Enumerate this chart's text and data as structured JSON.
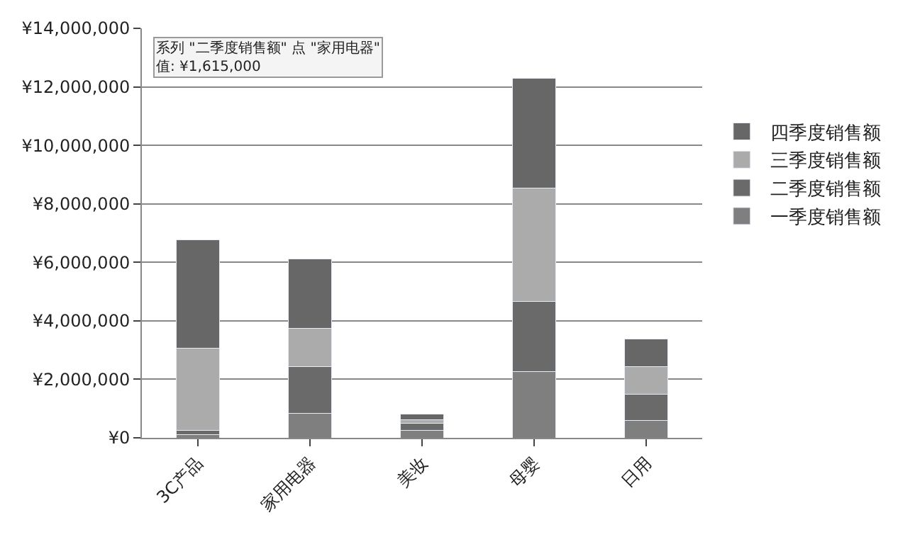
{
  "chart_data": {
    "type": "bar",
    "stacked": true,
    "categories": [
      "3C产品",
      "家用电器",
      "美妆",
      "母婴",
      "日用"
    ],
    "series": [
      {
        "name": "一季度销售额",
        "color": "#7f7f7f",
        "values": [
          100000,
          830000,
          250000,
          2270000,
          600000
        ]
      },
      {
        "name": "二季度销售额",
        "color": "#6a6a6a",
        "values": [
          160000,
          1615000,
          250000,
          2400000,
          890000
        ]
      },
      {
        "name": "三季度销售额",
        "color": "#ababab",
        "values": [
          2800000,
          1290000,
          120000,
          3860000,
          950000
        ]
      },
      {
        "name": "四季度销售额",
        "color": "#676767",
        "values": [
          3720000,
          2370000,
          200000,
          3770000,
          940000
        ]
      }
    ],
    "ylim": [
      0,
      14000000
    ],
    "yticks": [
      {
        "value": 0,
        "label": "¥0"
      },
      {
        "value": 2000000,
        "label": "¥2,000,000"
      },
      {
        "value": 4000000,
        "label": "¥4,000,000"
      },
      {
        "value": 6000000,
        "label": "¥6,000,000"
      },
      {
        "value": 8000000,
        "label": "¥8,000,000"
      },
      {
        "value": 10000000,
        "label": "¥10,000,000"
      },
      {
        "value": 12000000,
        "label": "¥12,000,000"
      },
      {
        "value": 14000000,
        "label": "¥14,000,000"
      }
    ],
    "grid": "y",
    "legend": "right",
    "annotations": [
      "系列 \"二季度销售额\" 点 \"家用电器\"\n值: ¥1,615,000"
    ]
  }
}
